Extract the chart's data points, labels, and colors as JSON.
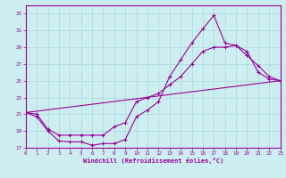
{
  "background_color": "#cceef0",
  "line_color": "#990099",
  "xlabel": "Windchill (Refroidissement éolien,°C)",
  "xlim": [
    0,
    23
  ],
  "ylim": [
    17,
    34
  ],
  "xticks": [
    0,
    1,
    2,
    3,
    4,
    5,
    6,
    7,
    8,
    9,
    10,
    11,
    12,
    13,
    14,
    15,
    16,
    17,
    18,
    19,
    20,
    21,
    22,
    23
  ],
  "yticks": [
    17,
    19,
    21,
    23,
    25,
    27,
    29,
    31,
    33
  ],
  "grid_color": "#aad8dc",
  "series1_x": [
    0,
    1,
    2,
    3,
    4,
    5,
    6,
    7,
    8,
    9,
    10,
    11,
    12,
    13,
    14,
    15,
    16,
    17,
    18,
    19,
    20,
    21,
    22,
    23
  ],
  "series1_y": [
    21.2,
    20.7,
    19.0,
    17.8,
    17.7,
    17.7,
    17.3,
    17.5,
    17.5,
    18.0,
    20.7,
    21.5,
    22.5,
    25.5,
    27.5,
    29.5,
    31.2,
    32.8,
    29.5,
    29.2,
    28.5,
    26.0,
    25.2,
    25.0
  ],
  "series2_x": [
    0,
    1,
    2,
    3,
    4,
    5,
    6,
    7,
    8,
    9,
    10,
    11,
    12,
    13,
    14,
    15,
    16,
    17,
    18,
    19,
    20,
    21,
    22,
    23
  ],
  "series2_y": [
    21.2,
    21.0,
    19.2,
    18.5,
    18.5,
    18.5,
    18.5,
    18.5,
    19.5,
    20.0,
    22.5,
    23.0,
    23.5,
    24.5,
    25.5,
    27.0,
    28.5,
    29.0,
    29.0,
    29.2,
    28.0,
    26.8,
    25.5,
    25.0
  ],
  "series3_x": [
    0,
    23
  ],
  "series3_y": [
    21.2,
    25.0
  ]
}
